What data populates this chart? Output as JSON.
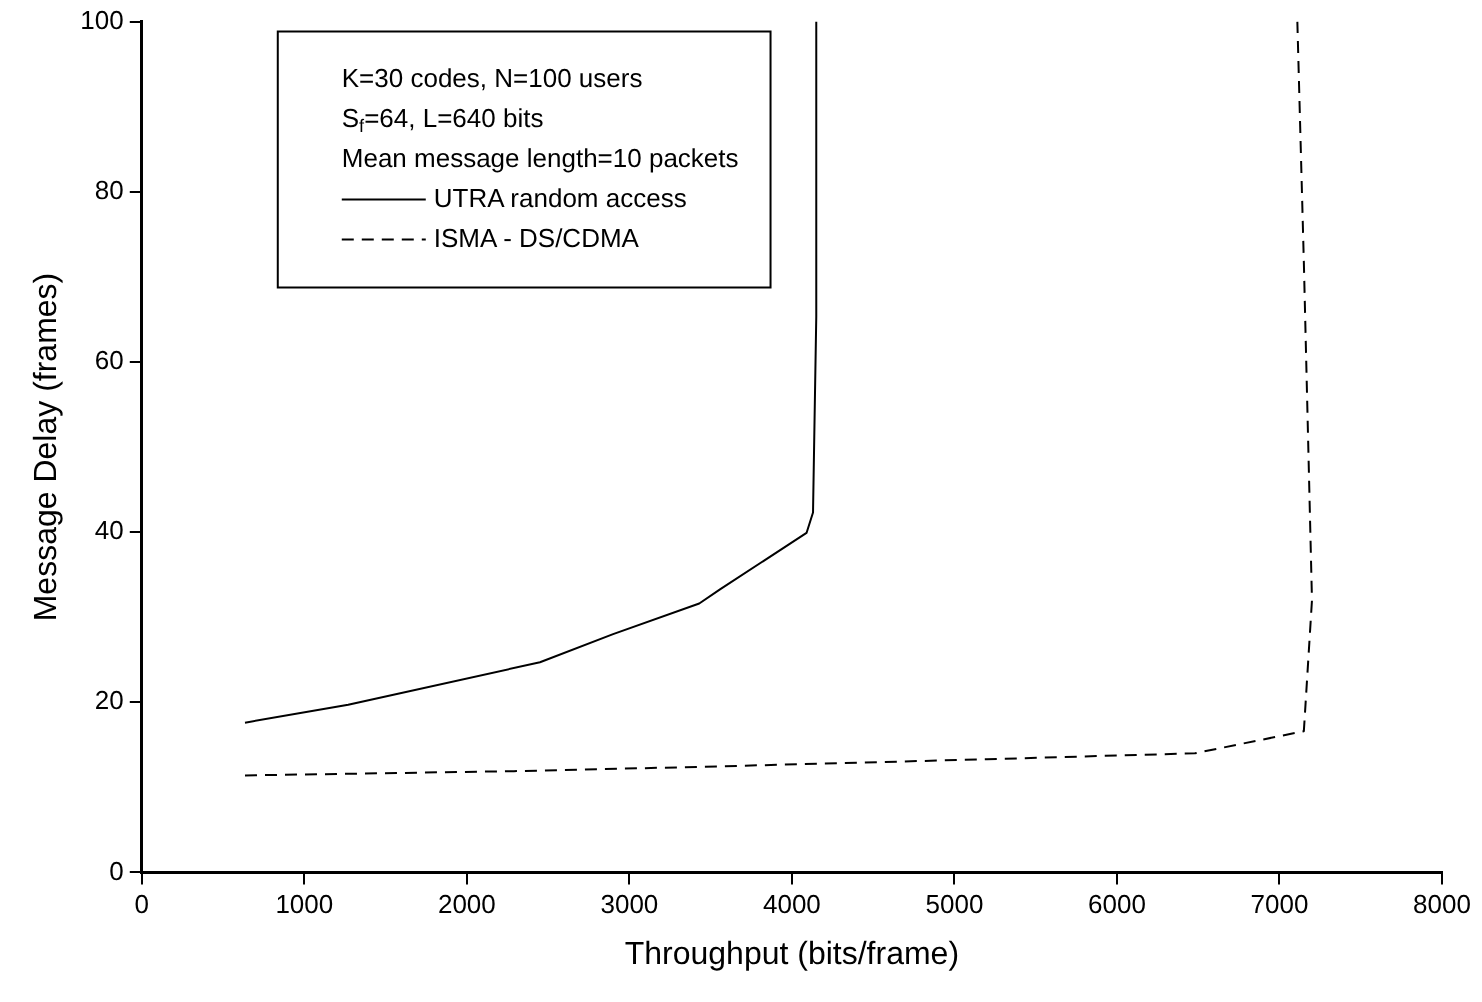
{
  "chart_data": {
    "type": "line",
    "xlabel": "Throughput (bits/frame)",
    "ylabel": "Message Delay (frames)",
    "xlim": [
      0,
      8000
    ],
    "xticks": [
      0,
      1000,
      2000,
      3000,
      4000,
      5000,
      6000,
      7000,
      8000
    ],
    "ylim": [
      0,
      100
    ],
    "yticks": [
      0,
      20,
      40,
      60,
      80,
      100
    ],
    "annotations": [
      "K=30 codes, N=100 users",
      "S$_{f}$=64, L=640 bits",
      "Mean message length=10 packets"
    ],
    "legend": "top left",
    "grid": false,
    "marker": "none",
    "series": [
      {
        "name": "UTRA random access",
        "color": "#000000",
        "line_style": "solid",
        "x": [
          635,
          1270,
          2450,
          2900,
          3430,
          3560,
          4090,
          4130,
          4150,
          4150
        ],
        "values": [
          17.6,
          19.7,
          24.7,
          28,
          31.6,
          33.3,
          39.9,
          42.3,
          65.3,
          100
        ]
      },
      {
        "name": "ISMA - DS/CDMA",
        "color": "#000000",
        "line_style": "dashed",
        "x": [
          635,
          2290,
          3430,
          5200,
          6480,
          7150,
          7200,
          7150,
          7110
        ],
        "values": [
          11.4,
          11.9,
          12.4,
          13.3,
          14.0,
          16.6,
          32,
          71.7,
          100
        ]
      }
    ]
  }
}
